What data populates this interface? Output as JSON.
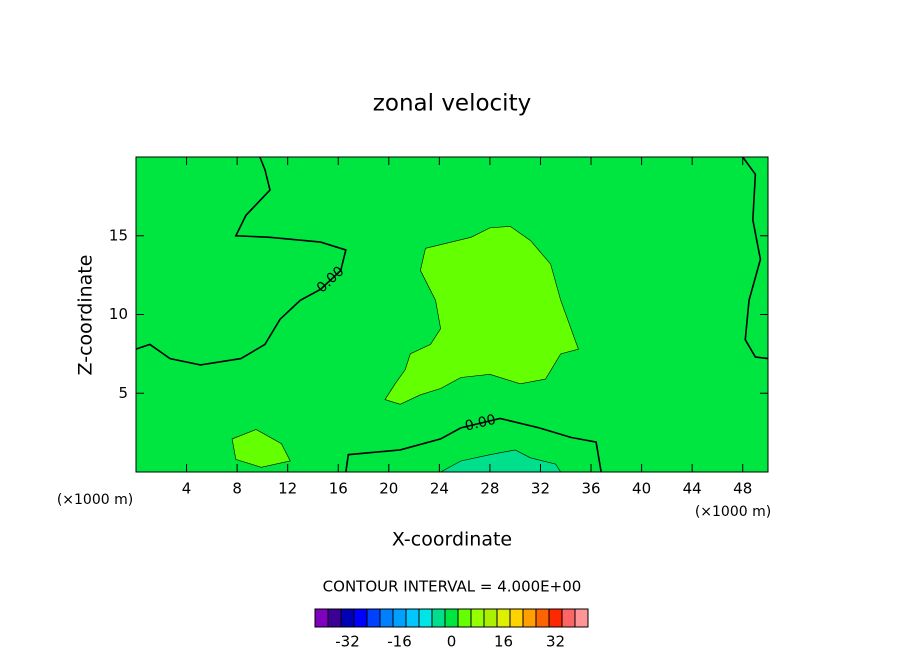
{
  "chart_data": {
    "type": "contour",
    "title": "zonal velocity",
    "xlabel": "X-coordinate",
    "ylabel": "Z-coordinate",
    "xunit": "(×1000 m)",
    "interval_text": "CONTOUR INTERVAL = 4.000E+00",
    "xlim": [
      0,
      50
    ],
    "ylim": [
      0,
      20
    ],
    "xticks": [
      4,
      8,
      12,
      16,
      20,
      24,
      28,
      32,
      36,
      40,
      44,
      48
    ],
    "yticks": [
      5,
      10,
      15
    ],
    "base_level": 0,
    "regions": [
      {
        "level": 4,
        "x": [
          22.9,
          26.5,
          28.0,
          29.6,
          31.2,
          32.8,
          33.6,
          35.0,
          33.6,
          32.4,
          30.4,
          28.0,
          25.7,
          24.1,
          22.5,
          20.9,
          19.7,
          20.5,
          21.3,
          21.7,
          23.3,
          24.1,
          23.7,
          22.5
        ],
        "y": [
          14.2,
          14.9,
          15.5,
          15.6,
          14.7,
          13.2,
          10.9,
          7.8,
          7.5,
          5.9,
          5.6,
          6.2,
          6.0,
          5.3,
          4.9,
          4.3,
          4.6,
          5.6,
          6.5,
          7.5,
          8.1,
          9.1,
          10.9,
          12.8
        ]
      },
      {
        "level": 4,
        "x": [
          7.6,
          9.5,
          11.5,
          12.2,
          9.9,
          7.9
        ],
        "y": [
          2.1,
          2.7,
          1.8,
          0.7,
          0.3,
          0.8
        ]
      },
      {
        "level": -4,
        "x": [
          24.1,
          25.7,
          28.0,
          30.0,
          31.2,
          33.2,
          33.6
        ],
        "y": [
          0,
          0.7,
          1.1,
          1.4,
          0.9,
          0.5,
          0
        ]
      }
    ],
    "lines": [
      {
        "label": "0.00",
        "x": [
          0.0,
          1.1,
          2.7,
          5.1,
          8.3,
          10.2,
          11.4,
          13.0,
          14.6,
          16.2,
          16.6,
          14.6,
          10.6,
          7.9,
          8.7,
          10.6,
          10.2,
          9.8
        ],
        "y": [
          7.8,
          8.1,
          7.2,
          6.8,
          7.2,
          8.1,
          9.7,
          10.9,
          11.6,
          12.8,
          14.1,
          14.6,
          14.9,
          15.0,
          16.3,
          17.9,
          19.2,
          20.0
        ]
      },
      {
        "label": "0.00",
        "x": [
          16.6,
          16.8,
          20.9,
          24.1,
          25.7,
          28.8,
          31.9,
          34.4,
          36.4,
          36.8
        ],
        "y": [
          0,
          1.1,
          1.4,
          2.1,
          2.8,
          3.4,
          2.8,
          2.2,
          1.9,
          0
        ]
      },
      {
        "x": [
          48.0,
          49.0,
          48.8,
          49.4,
          48.5,
          48.2,
          49.0,
          50.0
        ],
        "y": [
          20.0,
          18.9,
          16.0,
          13.5,
          10.9,
          8.4,
          7.3,
          7.2
        ]
      }
    ],
    "colorbar": {
      "levels": [
        -40,
        -36,
        -32,
        -28,
        -24,
        -20,
        -16,
        -12,
        -8,
        -4,
        0,
        4,
        8,
        12,
        16,
        20,
        24,
        28,
        32,
        36,
        40
      ],
      "colors": [
        "#8000c0",
        "#3c0096",
        "#0000b4",
        "#0000ff",
        "#0040ff",
        "#0080ff",
        "#00a0ff",
        "#00c8ff",
        "#00e6e6",
        "#00e08c",
        "#00e640",
        "#64ff00",
        "#96ff00",
        "#aaf000",
        "#dcf000",
        "#ffd200",
        "#ffa000",
        "#ff6400",
        "#ff2800",
        "#ff6464",
        "#ff9696"
      ],
      "ticks": [
        -32,
        -16,
        0,
        16,
        32
      ]
    }
  }
}
